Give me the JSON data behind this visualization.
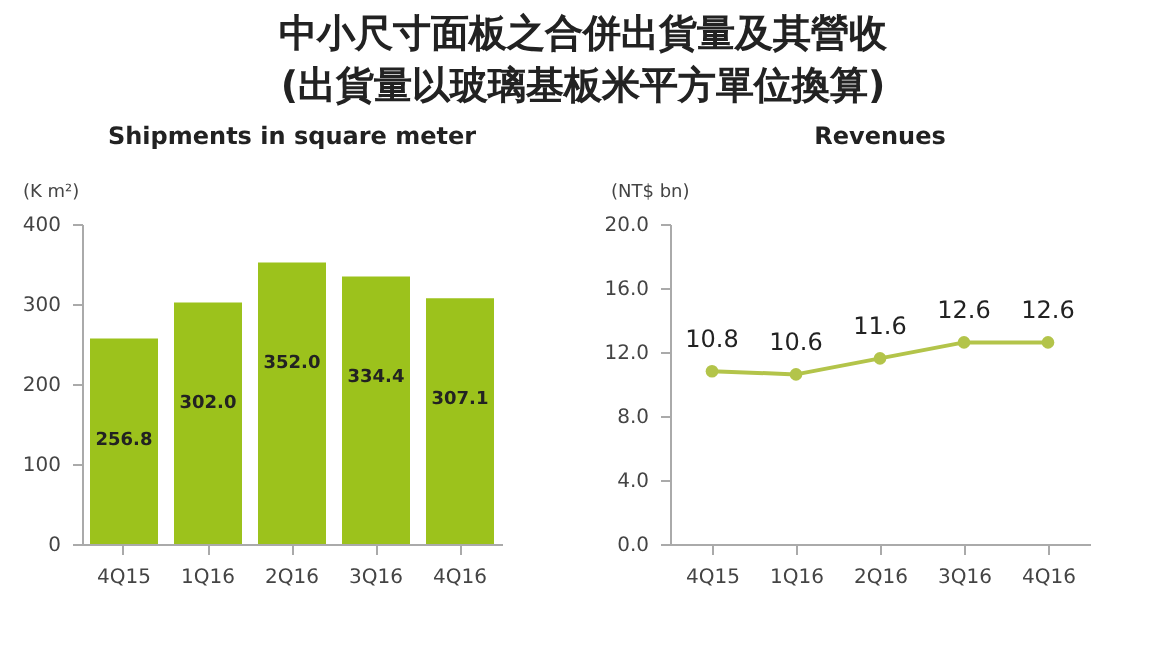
{
  "chart_data": [
    {
      "type": "bar",
      "title": "Shipments in square meter",
      "ylabel": "(K m²)",
      "annotations": [
        "中小尺寸面板之合併出貨量及其營收",
        "(出貨量以玻璃基板米平方單位換算)"
      ],
      "categories": [
        "4Q15",
        "1Q16",
        "2Q16",
        "3Q16",
        "4Q16"
      ],
      "values": [
        256.8,
        302.0,
        352.0,
        334.4,
        307.1
      ],
      "color": "#9cc21c",
      "ylim": [
        0,
        400
      ],
      "yticks": [
        0,
        100,
        200,
        300,
        400
      ],
      "data_labels": true,
      "value_labels": [
        "256.8",
        "302.0",
        "352.0",
        "334.4",
        "307.1"
      ]
    },
    {
      "type": "line",
      "title": "Revenues",
      "ylabel": "(NT$ bn)",
      "categories": [
        "4Q15",
        "1Q16",
        "2Q16",
        "3Q16",
        "4Q16"
      ],
      "values": [
        10.8,
        10.6,
        11.6,
        12.6,
        12.6
      ],
      "color": "#b3c44a",
      "marker": "circle",
      "ylim": [
        0,
        20
      ],
      "yticks": [
        {
          "value": 0,
          "label": "0.0"
        },
        {
          "value": 4,
          "label": "4.0"
        },
        {
          "value": 8,
          "label": "8.0"
        },
        {
          "value": 12,
          "label": "12.0"
        },
        {
          "value": 16,
          "label": "16.0"
        },
        {
          "value": 20,
          "label": "20.0"
        }
      ],
      "data_labels": true,
      "value_labels": [
        "10.8",
        "10.6",
        "11.6",
        "12.6",
        "12.6"
      ]
    }
  ]
}
